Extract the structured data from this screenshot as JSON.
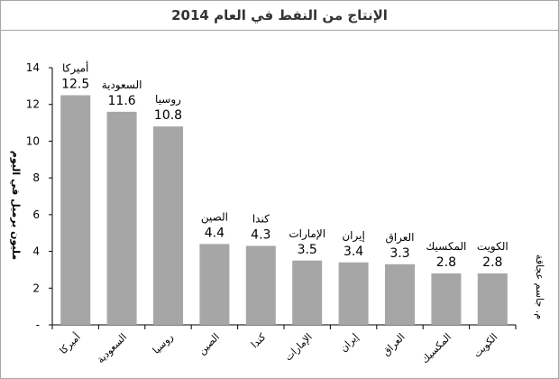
{
  "chart_data": {
    "type": "bar",
    "title": "الإنتاج من النفط في العام 2014",
    "ylabel": "مليون برميل في اليوم",
    "side_note": "م. جاسم عجاقة",
    "ylim": [
      0,
      14
    ],
    "yticks": [
      0,
      2,
      4,
      6,
      8,
      10,
      12,
      14
    ],
    "ytick_labels": [
      "-",
      "2",
      "4",
      "6",
      "8",
      "10",
      "12",
      "14"
    ],
    "categories": [
      "أميركا",
      "السعودية",
      "روسيا",
      "الصين",
      "كندا",
      "الإمارات",
      "إيران",
      "العراق",
      "المكسيك",
      "الكويت"
    ],
    "values": [
      12.5,
      11.6,
      10.8,
      4.4,
      4.3,
      3.5,
      3.4,
      3.3,
      2.8,
      2.8
    ],
    "value_labels": [
      "12.5",
      "11.6",
      "10.8",
      "4.4",
      "4.3",
      "3.5",
      "3.4",
      "3.3",
      "2.8",
      "2.8"
    ],
    "bar_color": "#a6a6a6",
    "grid": false,
    "legend": "none"
  }
}
